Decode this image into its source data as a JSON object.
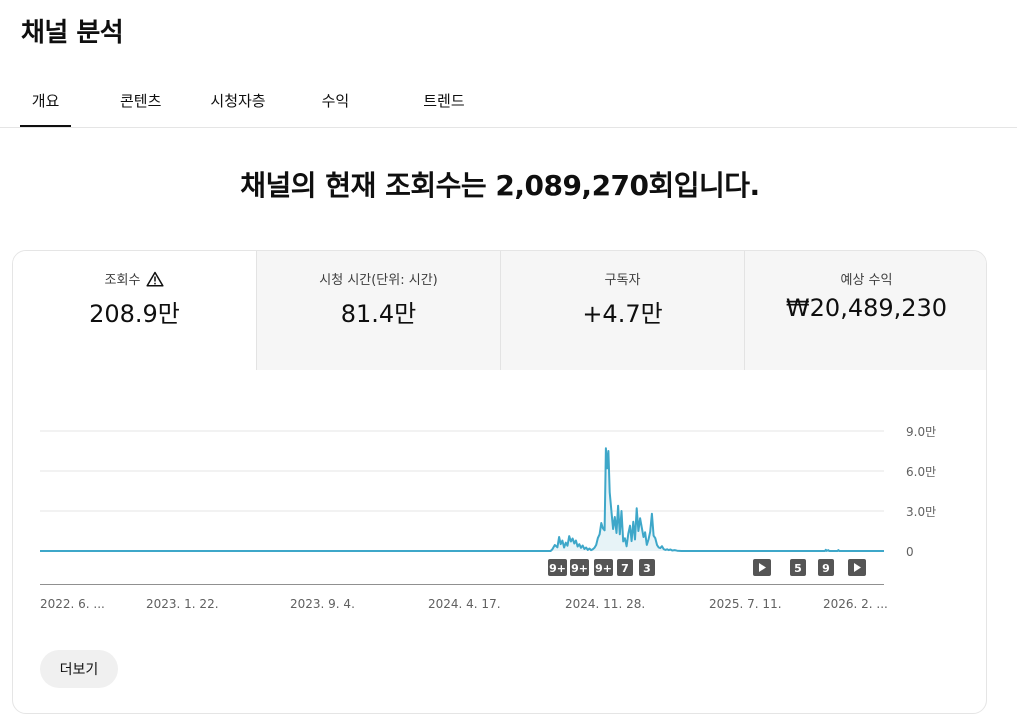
{
  "page": {
    "title": "채널 분석"
  },
  "tabs": [
    {
      "label": "개요",
      "active": true
    },
    {
      "label": "콘텐츠",
      "active": false
    },
    {
      "label": "시청자층",
      "active": false
    },
    {
      "label": "수익",
      "active": false
    },
    {
      "label": "트렌드",
      "active": false
    }
  ],
  "headline": "채널의 현재 조회수는 2,089,270회입니다.",
  "metrics": [
    {
      "label": "조회수",
      "value": "208.9만",
      "icon": "warning-icon",
      "selected": true
    },
    {
      "label": "시청 시간(단위: 시간)",
      "value": "81.4만",
      "selected": false
    },
    {
      "label": "구독자",
      "value": "+4.7만",
      "selected": false
    },
    {
      "label": "예상 수익",
      "value": "₩20,489,230",
      "selected": false
    }
  ],
  "more_button": {
    "label": "더보기"
  },
  "colors": {
    "line": "#3ea7c9",
    "fill": "#e7f3f7",
    "badge": "#555555",
    "text": "#0f0f0f"
  },
  "chart_data": {
    "type": "area",
    "metric": "조회수",
    "y_ticks": [
      "9.0만",
      "6.0만",
      "3.0만",
      "0"
    ],
    "y_tick_values": [
      90000,
      60000,
      30000,
      0
    ],
    "ylim": [
      0,
      90000
    ],
    "x_ticks": [
      "2022. 6. ...",
      "2023. 1. 22.",
      "2023. 9. 4.",
      "2024. 4. 17.",
      "2024. 11. 28.",
      "2025. 7. 11.",
      "2026. 2. ..."
    ],
    "grid": true,
    "series": [
      {
        "points": [
          [
            0.0,
            0
          ],
          [
            0.605,
            0
          ],
          [
            0.607,
            1200
          ],
          [
            0.61,
            4500
          ],
          [
            0.613,
            2800
          ],
          [
            0.615,
            10500
          ],
          [
            0.617,
            5200
          ],
          [
            0.619,
            7800
          ],
          [
            0.621,
            2600
          ],
          [
            0.623,
            6200
          ],
          [
            0.625,
            4000
          ],
          [
            0.627,
            11200
          ],
          [
            0.629,
            7100
          ],
          [
            0.631,
            9400
          ],
          [
            0.633,
            5600
          ],
          [
            0.635,
            7900
          ],
          [
            0.637,
            3400
          ],
          [
            0.639,
            5100
          ],
          [
            0.641,
            2400
          ],
          [
            0.643,
            4100
          ],
          [
            0.645,
            1500
          ],
          [
            0.647,
            2600
          ],
          [
            0.649,
            800
          ],
          [
            0.651,
            1900
          ],
          [
            0.653,
            700
          ],
          [
            0.655,
            1300
          ],
          [
            0.657,
            2400
          ],
          [
            0.659,
            4600
          ],
          [
            0.661,
            9800
          ],
          [
            0.663,
            12500
          ],
          [
            0.665,
            21000
          ],
          [
            0.667,
            17000
          ],
          [
            0.669,
            15500
          ],
          [
            0.6705,
            77000
          ],
          [
            0.672,
            62000
          ],
          [
            0.6735,
            75000
          ],
          [
            0.675,
            44000
          ],
          [
            0.677,
            30000
          ],
          [
            0.679,
            16500
          ],
          [
            0.681,
            25500
          ],
          [
            0.683,
            13500
          ],
          [
            0.685,
            34000
          ],
          [
            0.687,
            12500
          ],
          [
            0.689,
            30000
          ],
          [
            0.691,
            7200
          ],
          [
            0.693,
            9500
          ],
          [
            0.695,
            3500
          ],
          [
            0.697,
            13000
          ],
          [
            0.699,
            19000
          ],
          [
            0.701,
            7400
          ],
          [
            0.703,
            22000
          ],
          [
            0.705,
            8600
          ],
          [
            0.707,
            32000
          ],
          [
            0.709,
            15000
          ],
          [
            0.711,
            24500
          ],
          [
            0.713,
            17500
          ],
          [
            0.715,
            10500
          ],
          [
            0.717,
            14000
          ],
          [
            0.719,
            4600
          ],
          [
            0.721,
            8600
          ],
          [
            0.723,
            14500
          ],
          [
            0.725,
            28000
          ],
          [
            0.727,
            11500
          ],
          [
            0.729,
            9600
          ],
          [
            0.731,
            4600
          ],
          [
            0.733,
            2600
          ],
          [
            0.735,
            2200
          ],
          [
            0.737,
            3600
          ],
          [
            0.739,
            1400
          ],
          [
            0.741,
            800
          ],
          [
            0.743,
            1300
          ],
          [
            0.745,
            700
          ],
          [
            0.747,
            1100
          ],
          [
            0.749,
            400
          ],
          [
            0.752,
            700
          ],
          [
            0.755,
            200
          ],
          [
            0.76,
            0
          ],
          [
            0.93,
            0
          ],
          [
            0.931,
            900
          ],
          [
            0.932,
            100
          ],
          [
            0.934,
            700
          ],
          [
            0.935,
            0
          ],
          [
            0.945,
            0
          ],
          [
            0.946,
            700
          ],
          [
            0.947,
            0
          ],
          [
            1.0,
            0
          ]
        ]
      }
    ],
    "annotation_markers": [
      {
        "label": "9+",
        "type": "count"
      },
      {
        "label": "9+",
        "type": "count"
      },
      {
        "label": "9+",
        "type": "count"
      },
      {
        "label": "7",
        "type": "count"
      },
      {
        "label": "3",
        "type": "count"
      },
      {
        "label": "",
        "type": "video",
        "icon": "play-icon"
      },
      {
        "label": "5",
        "type": "count"
      },
      {
        "label": "9",
        "type": "count"
      },
      {
        "label": "",
        "type": "video",
        "icon": "play-icon"
      }
    ]
  }
}
